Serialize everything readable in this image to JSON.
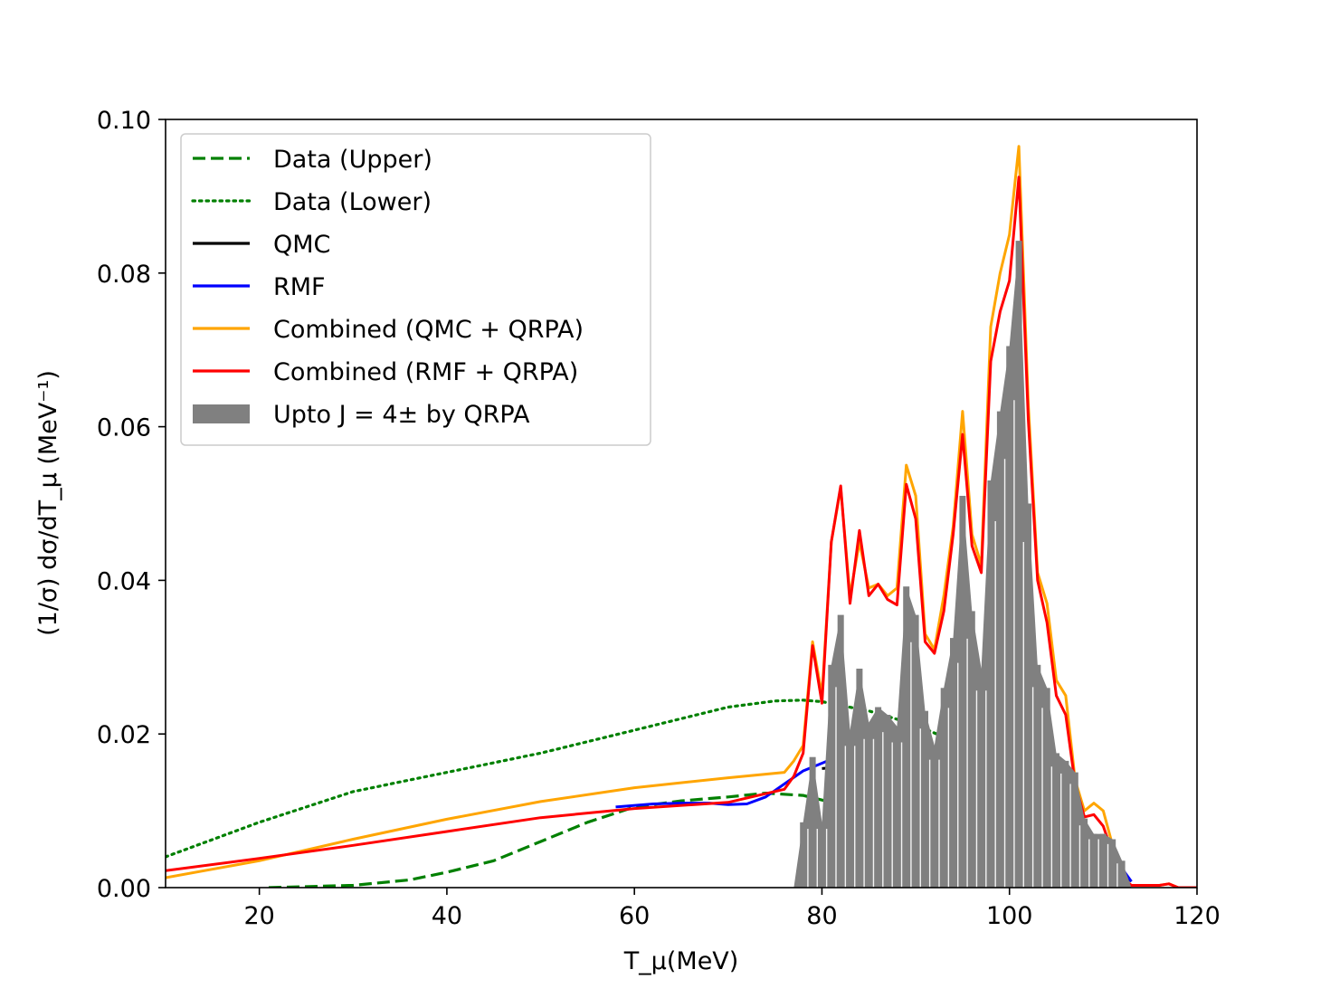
{
  "chart_data": {
    "type": "line",
    "xlabel": "T_μ(MeV)",
    "ylabel": "(1/σ) dσ/dT_μ  (MeV⁻¹)",
    "xlim": [
      10,
      120
    ],
    "ylim": [
      0,
      0.1
    ],
    "x_ticks": [
      20,
      40,
      60,
      80,
      100,
      120
    ],
    "x_tick_labels": [
      "20",
      "40",
      "60",
      "80",
      "100",
      "120"
    ],
    "y_ticks": [
      0,
      0.02,
      0.04,
      0.06,
      0.08,
      0.1
    ],
    "y_tick_labels": [
      "0.00",
      "0.02",
      "0.04",
      "0.06",
      "0.08",
      "0.10"
    ],
    "grid": false,
    "legend_position": "upper-left",
    "series": [
      {
        "name": "Data (Upper)",
        "color": "#008000",
        "style": "dashed",
        "x": [
          21,
          30,
          36,
          40,
          45,
          50,
          55,
          60,
          65,
          70,
          74,
          78,
          82,
          86,
          90,
          95,
          99
        ],
        "y": [
          0.0,
          0.0003,
          0.001,
          0.002,
          0.0035,
          0.006,
          0.0085,
          0.0105,
          0.0113,
          0.0118,
          0.0123,
          0.012,
          0.0108,
          0.0092,
          0.0075,
          0.0055,
          0.0035
        ]
      },
      {
        "name": "Data (Lower)",
        "color": "#008000",
        "style": "dotted",
        "x": [
          10,
          20,
          30,
          40,
          50,
          60,
          70,
          75,
          78,
          80,
          85,
          90,
          95,
          99
        ],
        "y": [
          0.004,
          0.0085,
          0.0125,
          0.015,
          0.0175,
          0.0205,
          0.0235,
          0.0243,
          0.0244,
          0.0242,
          0.023,
          0.0212,
          0.0185,
          0.016
        ]
      },
      {
        "name": "QMC",
        "color": "#000000",
        "style": "solid",
        "x": [
          80,
          83,
          85,
          88,
          90,
          93,
          95,
          97,
          100,
          103,
          105,
          108,
          111,
          113
        ],
        "y": [
          0.0155,
          0.0158,
          0.0159,
          0.0159,
          0.0157,
          0.0156,
          0.0148,
          0.014,
          0.0128,
          0.0115,
          0.009,
          0.0065,
          0.003,
          0.0008
        ]
      },
      {
        "name": "RMF",
        "color": "#0000ff",
        "style": "solid",
        "x": [
          58,
          62,
          65,
          68,
          70,
          72,
          74,
          76,
          78,
          80,
          82,
          84,
          86,
          88,
          90,
          92,
          94,
          96,
          98,
          100,
          102,
          104,
          106,
          108,
          110,
          112,
          113
        ],
        "y": [
          0.0105,
          0.0109,
          0.011,
          0.011,
          0.0108,
          0.0109,
          0.0118,
          0.0135,
          0.0152,
          0.0162,
          0.0172,
          0.0178,
          0.0173,
          0.0155,
          0.0128,
          0.0105,
          0.0088,
          0.0081,
          0.0079,
          0.0079,
          0.0079,
          0.008,
          0.0078,
          0.0072,
          0.006,
          0.0025,
          0.0008
        ]
      },
      {
        "name": "Combined (QMC + QRPA)",
        "color": "#ffa500",
        "style": "solid",
        "x": [
          10,
          20,
          30,
          40,
          50,
          60,
          70,
          76,
          77,
          78,
          79,
          80,
          81,
          82,
          83,
          84,
          85,
          86,
          87,
          88,
          89,
          90,
          91,
          92,
          93,
          94,
          95,
          96,
          97,
          98,
          99,
          100,
          101,
          102,
          103,
          104,
          105,
          106,
          107,
          108,
          109,
          110,
          111,
          112,
          113,
          114,
          116,
          117,
          118,
          120
        ],
        "y": [
          0.0013,
          0.0035,
          0.0063,
          0.0089,
          0.0112,
          0.013,
          0.0143,
          0.015,
          0.0165,
          0.0185,
          0.032,
          0.025,
          0.045,
          0.052,
          0.038,
          0.045,
          0.039,
          0.0395,
          0.038,
          0.039,
          0.055,
          0.051,
          0.033,
          0.031,
          0.038,
          0.047,
          0.062,
          0.046,
          0.042,
          0.073,
          0.08,
          0.085,
          0.0965,
          0.063,
          0.041,
          0.037,
          0.027,
          0.025,
          0.014,
          0.01,
          0.011,
          0.01,
          0.0055,
          0.0012,
          0.0003,
          0.0003,
          0.0003,
          0.0005,
          0.0,
          0.0
        ]
      },
      {
        "name": "Combined (RMF + QRPA)",
        "color": "#ff0000",
        "style": "solid",
        "x": [
          10,
          20,
          30,
          40,
          50,
          60,
          70,
          76,
          77,
          78,
          79,
          80,
          81,
          82,
          83,
          84,
          85,
          86,
          87,
          88,
          89,
          90,
          91,
          92,
          93,
          94,
          95,
          96,
          97,
          98,
          99,
          100,
          101,
          102,
          103,
          104,
          105,
          106,
          107,
          108,
          109,
          110,
          111,
          112,
          113,
          114,
          116,
          117,
          118,
          120
        ],
        "y": [
          0.0022,
          0.0038,
          0.0055,
          0.0073,
          0.0091,
          0.0103,
          0.0111,
          0.0128,
          0.0145,
          0.0175,
          0.0315,
          0.024,
          0.045,
          0.0523,
          0.037,
          0.0465,
          0.038,
          0.0395,
          0.0375,
          0.0368,
          0.0525,
          0.048,
          0.032,
          0.0305,
          0.036,
          0.046,
          0.059,
          0.0445,
          0.041,
          0.0685,
          0.075,
          0.079,
          0.0925,
          0.061,
          0.04,
          0.0345,
          0.025,
          0.0225,
          0.0135,
          0.0092,
          0.0095,
          0.008,
          0.0045,
          0.0012,
          0.0003,
          0.0003,
          0.0003,
          0.0005,
          0.0,
          0.0
        ]
      },
      {
        "name": "Upto J = 4± by QRPA",
        "color": "#808080",
        "style": "bar",
        "x": [
          77,
          78,
          79,
          80,
          81,
          82,
          83,
          84,
          85,
          86,
          87,
          88,
          89,
          90,
          91,
          92,
          93,
          94,
          95,
          96,
          97,
          98,
          99,
          100,
          101,
          102,
          103,
          104,
          105,
          106,
          107,
          108,
          109,
          110,
          111,
          112,
          113
        ],
        "y": [
          0.0,
          0.0085,
          0.017,
          0.0085,
          0.029,
          0.0355,
          0.0205,
          0.0285,
          0.0215,
          0.0235,
          0.0225,
          0.021,
          0.0392,
          0.0355,
          0.023,
          0.0185,
          0.026,
          0.0325,
          0.051,
          0.036,
          0.0285,
          0.053,
          0.062,
          0.0705,
          0.0842,
          0.05,
          0.029,
          0.026,
          0.0175,
          0.0165,
          0.015,
          0.009,
          0.007,
          0.007,
          0.0063,
          0.0035,
          0.0
        ]
      }
    ],
    "legend": [
      {
        "label": "Data (Upper)",
        "color": "#008000",
        "style": "dashed"
      },
      {
        "label": "Data (Lower)",
        "color": "#008000",
        "style": "dotted"
      },
      {
        "label": "QMC",
        "color": "#000000",
        "style": "solid"
      },
      {
        "label": "RMF",
        "color": "#0000ff",
        "style": "solid"
      },
      {
        "label": "Combined (QMC + QRPA)",
        "color": "#ffa500",
        "style": "solid"
      },
      {
        "label": "Combined (RMF + QRPA)",
        "color": "#ff0000",
        "style": "solid"
      },
      {
        "label": "Upto J = 4± by QRPA",
        "color": "#808080",
        "style": "patch"
      }
    ]
  }
}
